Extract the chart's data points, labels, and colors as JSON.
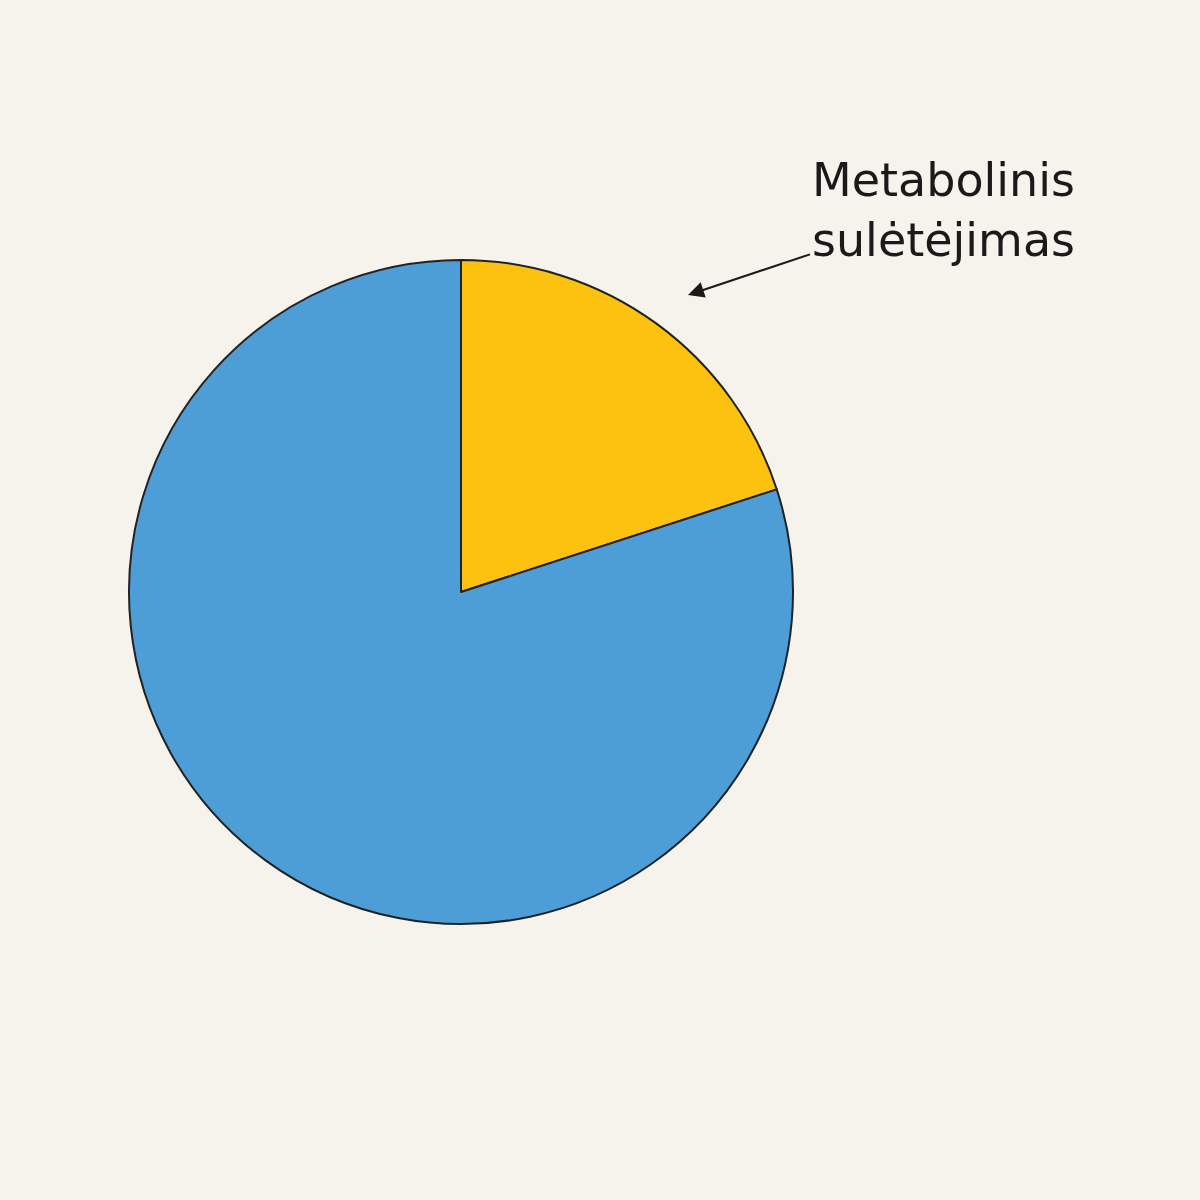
{
  "chart_data": {
    "type": "pie",
    "categories": [
      "Metabolinis sulėtėjimas",
      null
    ],
    "values": [
      20,
      80
    ],
    "colors": [
      "#fdc20f",
      "#4d9ed6"
    ]
  }
}
